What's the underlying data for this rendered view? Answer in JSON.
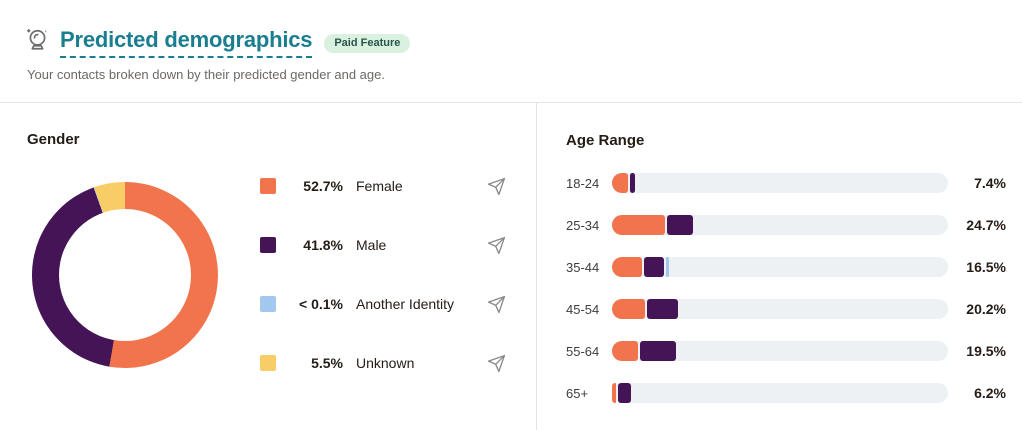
{
  "header": {
    "title": "Predicted demographics",
    "badge": "Paid Feature",
    "subtitle": "Your contacts broken down by their predicted gender and age."
  },
  "gender": {
    "heading": "Gender"
  },
  "age": {
    "heading": "Age Range"
  },
  "colors": {
    "female": "#f1744d",
    "male": "#451457",
    "another_identity": "#a3c8ef",
    "unknown": "#f9cd65",
    "track": "#edf1f3",
    "accent_teal": "#1a7e90",
    "badge_bg": "#d9f1de",
    "badge_text": "#26564b"
  },
  "chart_data": [
    {
      "type": "pie",
      "title": "Gender",
      "donut": true,
      "legend_position": "right",
      "labels": [
        "Female",
        "Male",
        "Another Identity",
        "Unknown"
      ],
      "values": [
        52.7,
        41.8,
        0.1,
        5.5
      ],
      "display_values": [
        "52.7%",
        "41.8%",
        "< 0.1%",
        "5.5%"
      ],
      "color_keys": [
        "female",
        "male",
        "another_identity",
        "unknown"
      ]
    },
    {
      "type": "bar",
      "title": "Age Range",
      "orientation": "horizontal",
      "stacked": true,
      "xlim": [
        0,
        100
      ],
      "grid": false,
      "categories": [
        "18-24",
        "25-34",
        "35-44",
        "45-54",
        "55-64",
        "65+"
      ],
      "totals_display": [
        "7.4%",
        "24.7%",
        "16.5%",
        "20.2%",
        "19.5%",
        "6.2%"
      ],
      "totals": [
        7.4,
        24.7,
        16.5,
        20.2,
        19.5,
        6.2
      ],
      "series": [
        {
          "name": "Female",
          "color_key": "female",
          "values": [
            5.3,
            16.4,
            9.4,
            10.3,
            8.3,
            1.7
          ]
        },
        {
          "name": "Male",
          "color_key": "male",
          "values": [
            2.1,
            8.3,
            6.6,
            9.9,
            11.2,
            4.5
          ]
        },
        {
          "name": "Another Identity",
          "color_key": "another_identity",
          "values": [
            0,
            0,
            0.5,
            0,
            0,
            0
          ]
        }
      ]
    }
  ]
}
